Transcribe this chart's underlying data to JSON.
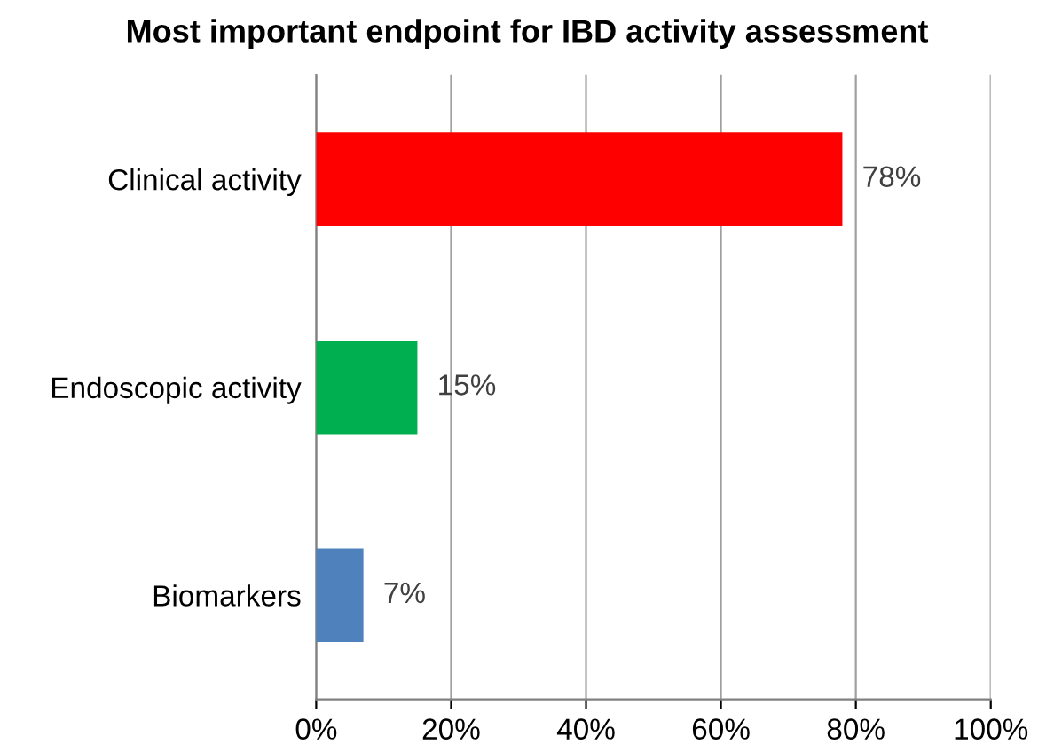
{
  "chart_data": {
    "type": "bar",
    "orientation": "horizontal",
    "title": "Most important endpoint for IBD activity assessment",
    "categories": [
      "Clinical activity",
      "Endoscopic activity",
      "Biomarkers"
    ],
    "values": [
      78,
      15,
      7
    ],
    "colors": [
      "#ff0000",
      "#00b050",
      "#4f81bd"
    ],
    "value_labels": [
      "78%",
      "15%",
      "7%"
    ],
    "xlim": [
      0,
      100
    ],
    "xticks": [
      {
        "value": 0,
        "label": "0%"
      },
      {
        "value": 20,
        "label": "20%"
      },
      {
        "value": 40,
        "label": "40%"
      },
      {
        "value": 60,
        "label": "60%"
      },
      {
        "value": 80,
        "label": "80%"
      },
      {
        "value": 100,
        "label": "100%"
      }
    ],
    "grid": "x",
    "legend": false
  }
}
